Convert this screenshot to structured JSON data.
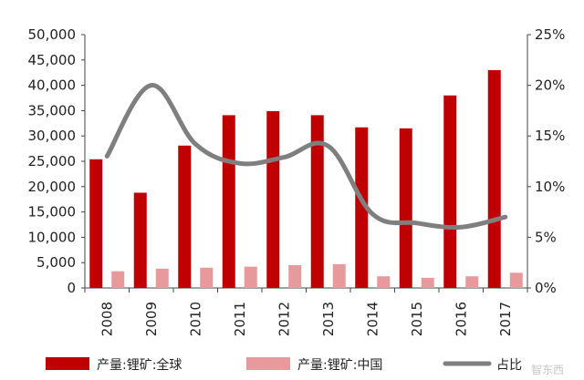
{
  "chart_data": {
    "type": "bar",
    "categories": [
      "2008",
      "2009",
      "2010",
      "2011",
      "2012",
      "2013",
      "2014",
      "2015",
      "2016",
      "2017"
    ],
    "series": [
      {
        "name": "产量:锂矿:全球",
        "type": "bar",
        "axis": "left",
        "color": "#c00000",
        "values": [
          25400,
          18800,
          28100,
          34100,
          34900,
          34100,
          31700,
          31500,
          38000,
          43000
        ]
      },
      {
        "name": "产量:锂矿:中国",
        "type": "bar",
        "axis": "left",
        "color": "#e8999c",
        "values": [
          3300,
          3800,
          4000,
          4200,
          4500,
          4700,
          2300,
          2000,
          2300,
          3000
        ]
      },
      {
        "name": "占比",
        "type": "line",
        "axis": "right",
        "color": "#7f7f7f",
        "values": [
          13.0,
          20.0,
          14.2,
          12.3,
          12.9,
          14.0,
          7.3,
          6.4,
          6.0,
          7.0
        ]
      }
    ],
    "y_left": {
      "ylim": [
        0,
        50000
      ],
      "ticks": [
        "0",
        "5,000",
        "10,000",
        "15,000",
        "20,000",
        "25,000",
        "30,000",
        "35,000",
        "40,000",
        "45,000",
        "50,000"
      ]
    },
    "y_right": {
      "ylim": [
        0,
        25
      ],
      "ticks": [
        "0%",
        "5%",
        "10%",
        "15%",
        "20%",
        "25%"
      ]
    },
    "grid": false,
    "legend_position": "bottom"
  },
  "watermark": "智东西"
}
